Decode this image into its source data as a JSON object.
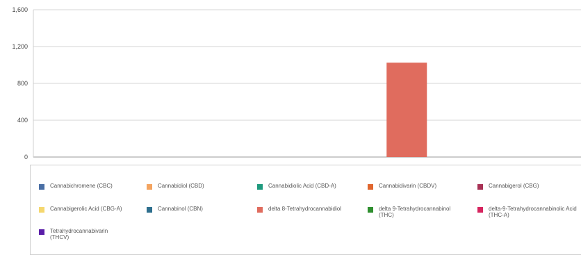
{
  "chart_data": {
    "type": "bar",
    "title": "",
    "xlabel": "",
    "ylabel": "",
    "ylim": [
      0,
      1600
    ],
    "yticks": [
      0,
      400,
      800,
      1200,
      1600
    ],
    "ytick_labels": [
      "0",
      "400",
      "800",
      "1,200",
      "1,600"
    ],
    "grid": true,
    "legend_position": "bottom",
    "series": [
      {
        "name": "Cannabichromene (CBC)",
        "color": "#4a6fa5",
        "value": 0
      },
      {
        "name": "Cannabidiol (CBD)",
        "color": "#f4a460",
        "value": 0
      },
      {
        "name": "Cannabidiolic Acid (CBD-A)",
        "color": "#1f9a7e",
        "value": 0
      },
      {
        "name": "Cannabidivarin (CBDV)",
        "color": "#e0662e",
        "value": 0
      },
      {
        "name": "Cannabigerol (CBG)",
        "color": "#a83256",
        "value": 0
      },
      {
        "name": "Cannabigerolic Acid (CBG-A)",
        "color": "#f5d76e",
        "value": 0
      },
      {
        "name": "Cannabinol (CBN)",
        "color": "#2e6f8e",
        "value": 0
      },
      {
        "name": "delta 8-Tetrahydrocannabidiol",
        "color": "#e06c5e",
        "value": 1025
      },
      {
        "name": "delta 9-Tetrahydrocannabinol (THC)",
        "color": "#2f8f2f",
        "value": 0
      },
      {
        "name": "delta-9-Tetrahydrocannabinolic Acid (THC-A)",
        "color": "#d6245e",
        "value": 0
      },
      {
        "name": "Tetrahydrocannabivarin (THCV)",
        "color": "#5a1ea8",
        "value": 0
      }
    ]
  }
}
